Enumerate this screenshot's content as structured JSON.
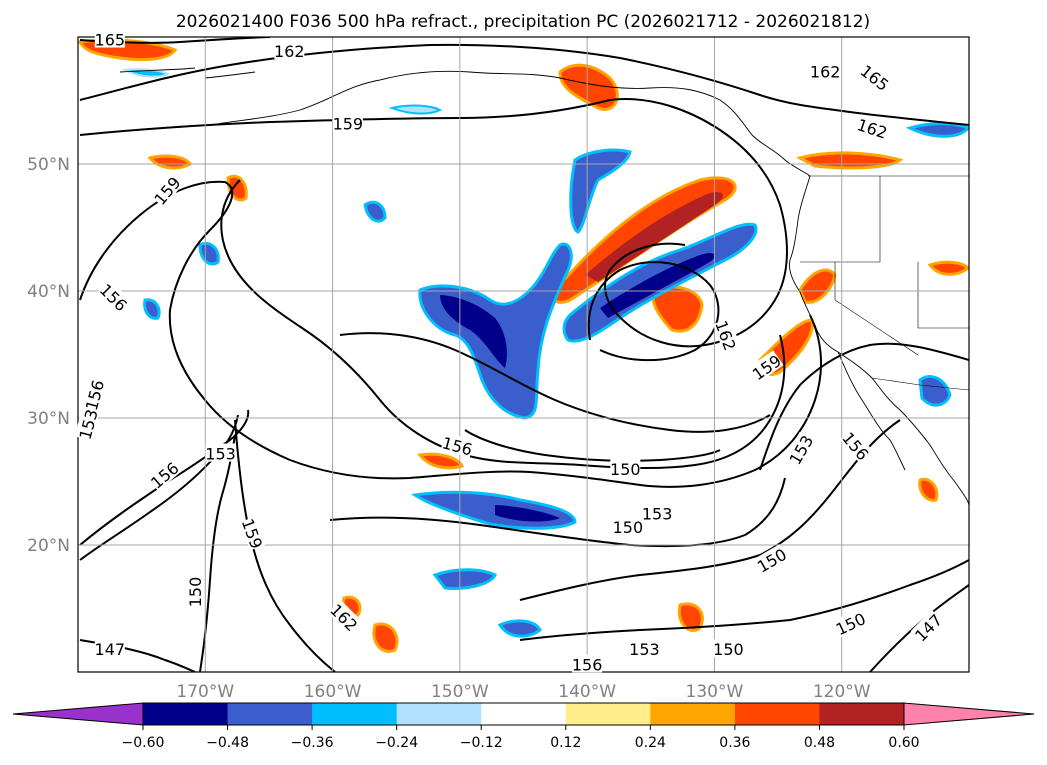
{
  "title": "2026021400 F036 500 hPa refract., precipitation PC (2026021712 - 2026021812)",
  "map": {
    "lon_range": [
      -180,
      -110
    ],
    "lat_range": [
      10,
      60
    ],
    "lat_labels": [
      {
        "lat": 50,
        "label": "50°N"
      },
      {
        "lat": 40,
        "label": "40°N"
      },
      {
        "lat": 30,
        "label": "30°N"
      },
      {
        "lat": 20,
        "label": "20°N"
      }
    ],
    "lon_labels": [
      {
        "lon": -170,
        "label": "170°W"
      },
      {
        "lon": -160,
        "label": "160°W"
      },
      {
        "lon": -150,
        "label": "150°W"
      },
      {
        "lon": -140,
        "label": "140°W"
      },
      {
        "lon": -130,
        "label": "130°W"
      },
      {
        "lon": -120,
        "label": "120°W"
      }
    ],
    "grid": true
  },
  "colorbar": {
    "ticks": [
      "−0.60",
      "−0.48",
      "−0.36",
      "−0.24",
      "−0.12",
      "0.12",
      "0.24",
      "0.36",
      "0.48",
      "0.60"
    ],
    "colors": [
      "#9932cc",
      "#00008b",
      "#3a5fcd",
      "#00bfff",
      "#b0e2ff",
      "#ffffff",
      "#ffec8b",
      "#ffa500",
      "#ff4500",
      "#b22222",
      "#ff82ab"
    ],
    "extend": "both"
  },
  "contour_labels": [
    {
      "text": "165",
      "lon": -177.5,
      "lat": 59.8,
      "rot": 0
    },
    {
      "text": "162",
      "lon": -163.4,
      "lat": 58.9,
      "rot": 0
    },
    {
      "text": "162",
      "lon": -121.3,
      "lat": 57.3,
      "rot": 0
    },
    {
      "text": "165",
      "lon": -117.4,
      "lat": 56.8,
      "rot": 38
    },
    {
      "text": "159",
      "lon": -158.8,
      "lat": 53.2,
      "rot": 0
    },
    {
      "text": "162",
      "lon": -117.6,
      "lat": 52.8,
      "rot": 18
    },
    {
      "text": "159",
      "lon": -173.0,
      "lat": 47.9,
      "rot": -50
    },
    {
      "text": "156",
      "lon": -177.2,
      "lat": 39.5,
      "rot": 45
    },
    {
      "text": "162",
      "lon": -129.1,
      "lat": 36.5,
      "rot": 70
    },
    {
      "text": "159",
      "lon": -125.9,
      "lat": 34.0,
      "rot": -35
    },
    {
      "text": "156",
      "lon": -178.7,
      "lat": 31.8,
      "rot": -75
    },
    {
      "text": "153",
      "lon": -179.2,
      "lat": 29.5,
      "rot": -75
    },
    {
      "text": "156",
      "lon": -150.2,
      "lat": 27.8,
      "rot": 15
    },
    {
      "text": "153",
      "lon": -168.8,
      "lat": 27.2,
      "rot": 0
    },
    {
      "text": "153",
      "lon": -123.2,
      "lat": 27.5,
      "rot": -60
    },
    {
      "text": "156",
      "lon": -118.9,
      "lat": 27.8,
      "rot": 50
    },
    {
      "text": "150",
      "lon": -137.0,
      "lat": 26.0,
      "rot": 0
    },
    {
      "text": "156",
      "lon": -173.2,
      "lat": 25.5,
      "rot": -40
    },
    {
      "text": "153",
      "lon": -134.5,
      "lat": 22.5,
      "rot": 0
    },
    {
      "text": "150",
      "lon": -136.8,
      "lat": 21.4,
      "rot": 0
    },
    {
      "text": "159",
      "lon": -166.3,
      "lat": 20.9,
      "rot": 70
    },
    {
      "text": "150",
      "lon": -125.5,
      "lat": 18.8,
      "rot": -30
    },
    {
      "text": "150",
      "lon": -170.8,
      "lat": 16.3,
      "rot": -90
    },
    {
      "text": "162",
      "lon": -159.1,
      "lat": 14.3,
      "rot": 45
    },
    {
      "text": "150",
      "lon": -119.3,
      "lat": 13.8,
      "rot": -25
    },
    {
      "text": "147",
      "lon": -113.2,
      "lat": 13.5,
      "rot": -45
    },
    {
      "text": "153",
      "lon": -135.5,
      "lat": 11.8,
      "rot": 0
    },
    {
      "text": "150",
      "lon": -128.9,
      "lat": 11.8,
      "rot": 0
    },
    {
      "text": "147",
      "lon": -177.5,
      "lat": 11.8,
      "rot": 0
    },
    {
      "text": "156",
      "lon": -140.0,
      "lat": 10.6,
      "rot": 0
    }
  ]
}
